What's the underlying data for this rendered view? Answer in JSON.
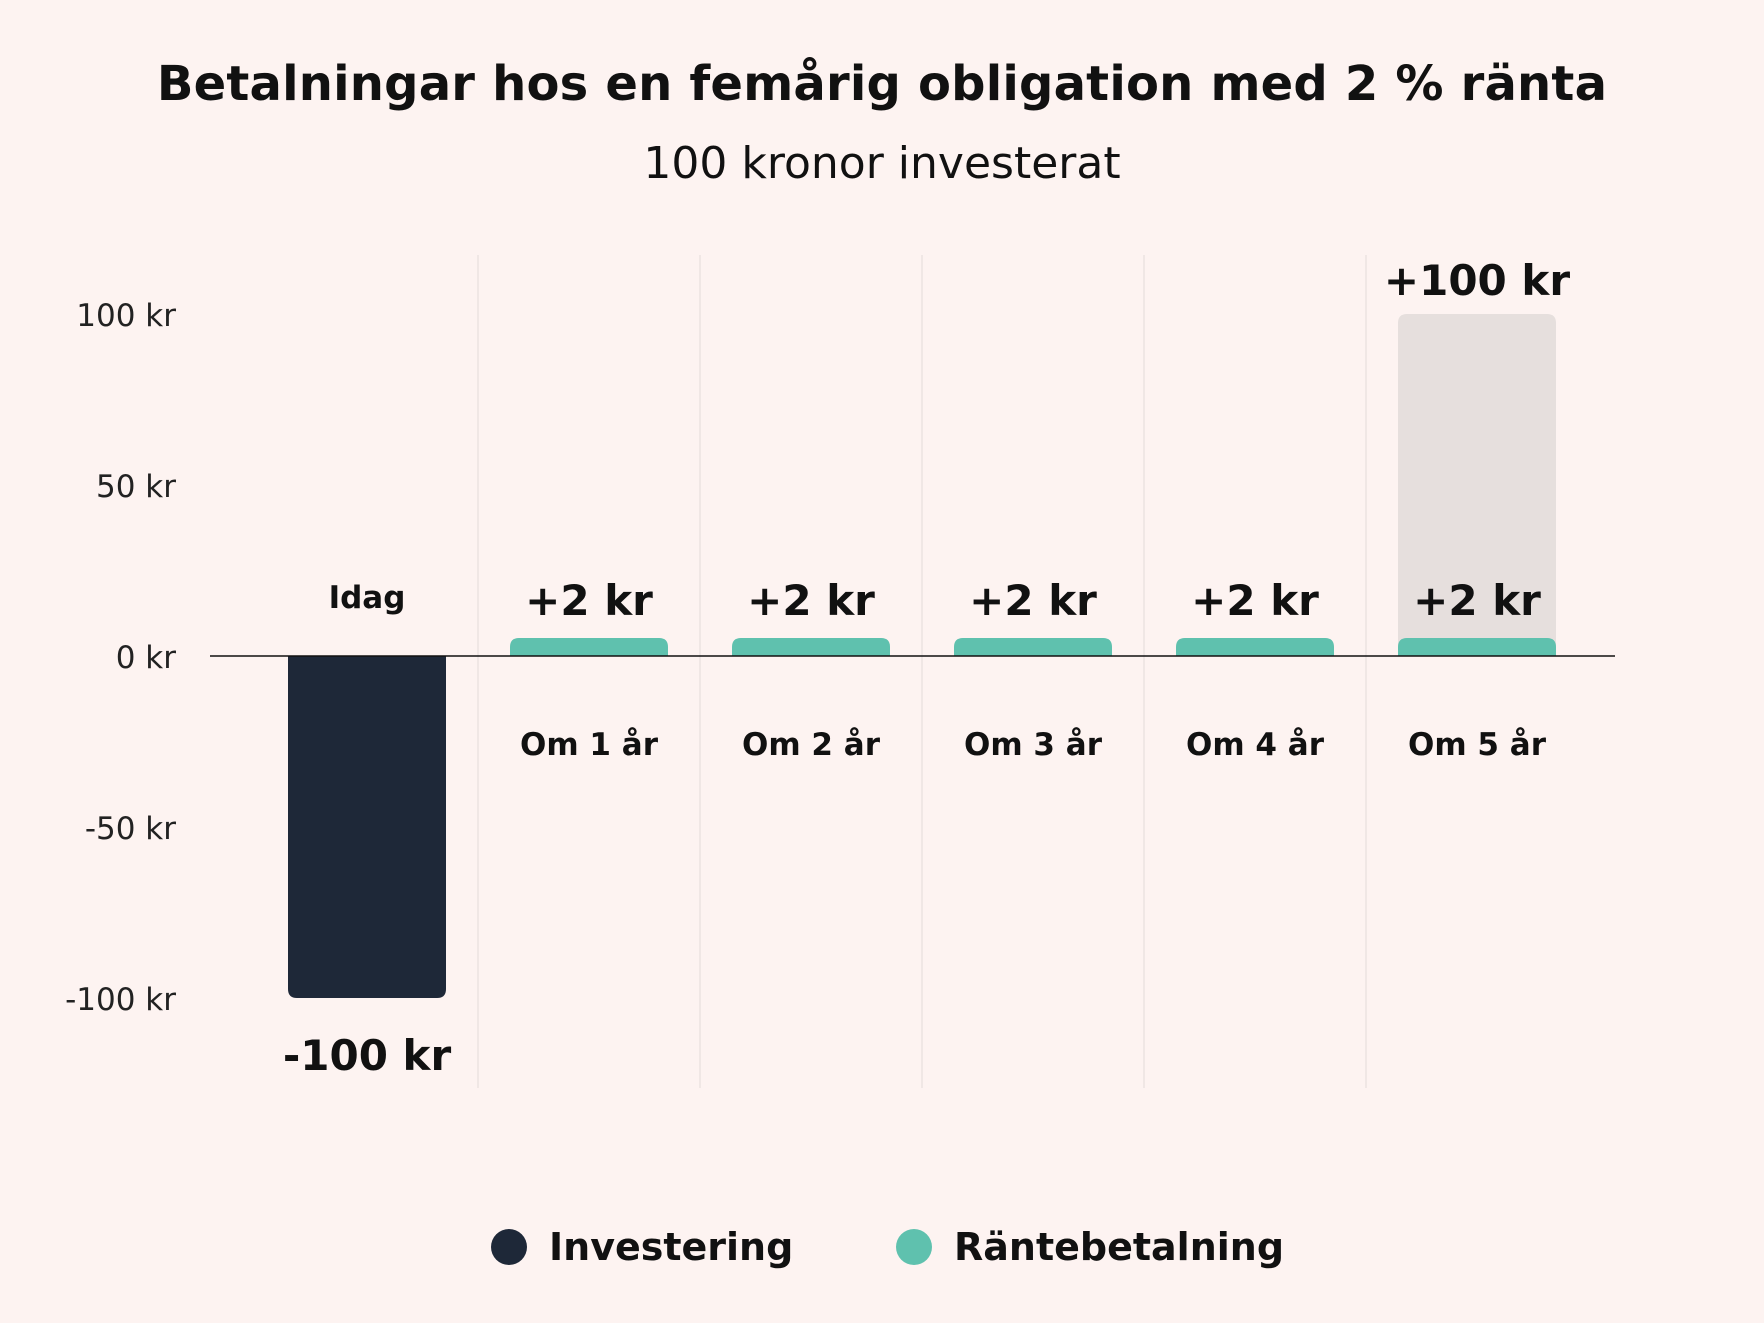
{
  "chart_data": {
    "type": "bar",
    "title": "Betalningar hos en femårig obligation med 2 % ränta",
    "subtitle": "100 kronor investerat",
    "categories": [
      "Idag",
      "Om 1 år",
      "Om 2 år",
      "Om 3 år",
      "Om 4 år",
      "Om 5 år"
    ],
    "series": [
      {
        "name": "Investering",
        "color": "#1e2838",
        "values": [
          -100,
          null,
          null,
          null,
          null,
          null
        ]
      },
      {
        "name": "Räntebetalning",
        "color": "#5fc1ae",
        "values": [
          null,
          2,
          2,
          2,
          2,
          2
        ]
      },
      {
        "color": "#e6dfdd",
        "values": [
          null,
          null,
          null,
          null,
          null,
          100
        ]
      }
    ],
    "data_labels": [
      "-100 kr",
      "+2 kr",
      "+2 kr",
      "+2 kr",
      "+2 kr",
      "+2 kr"
    ],
    "extra_label": "+100 kr",
    "yticks": [
      100,
      50,
      0,
      -50,
      -100
    ],
    "ytick_labels": [
      "100 kr",
      "50 kr",
      "0 kr",
      "-50 kr",
      "-100 kr"
    ],
    "ylim": [
      -125,
      118
    ],
    "grid": "vertical separators between categories",
    "legend_position": "bottom-center"
  }
}
